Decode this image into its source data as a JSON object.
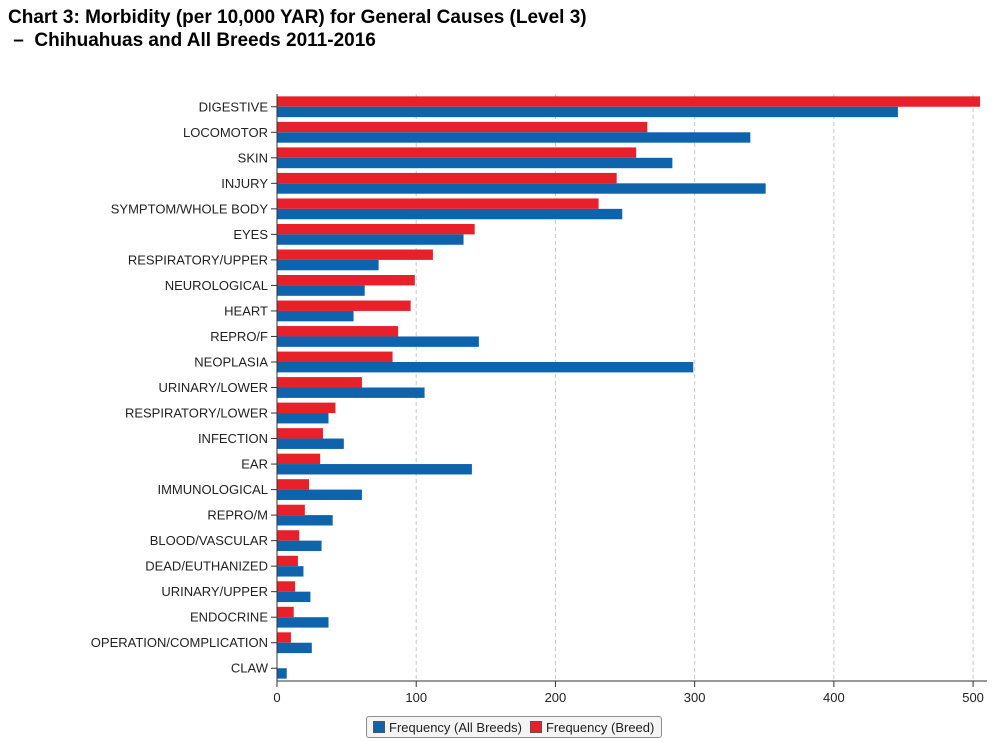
{
  "title": {
    "line1": "Chart 3: Morbidity (per 10,000 YAR) for General Causes (Level 3)",
    "line2": " –  Chihuahuas and All Breeds 2011-2016"
  },
  "colors": {
    "all_breeds": "#0e63ad",
    "breed": "#e8202a",
    "grid": "#c8c8c8"
  },
  "chart_data": {
    "type": "bar",
    "orientation": "horizontal",
    "title": "Chart 3: Morbidity (per 10,000 YAR) for General Causes (Level 3) – Chihuahuas and All Breeds 2011-2016",
    "xlabel": "",
    "ylabel": "",
    "xlim": [
      0,
      510
    ],
    "xticks": [
      0,
      100,
      200,
      300,
      400,
      500
    ],
    "grid": "vertical dashed",
    "legend_position": "bottom",
    "categories": [
      "DIGESTIVE",
      "LOCOMOTOR",
      "SKIN",
      "INJURY",
      "SYMPTOM/WHOLE BODY",
      "EYES",
      "RESPIRATORY/UPPER",
      "NEUROLOGICAL",
      "HEART",
      "REPRO/F",
      "NEOPLASIA",
      "URINARY/LOWER",
      "RESPIRATORY/LOWER",
      "INFECTION",
      "EAR",
      "IMMUNOLOGICAL",
      "REPRO/M",
      "BLOOD/VASCULAR",
      "DEAD/EUTHANIZED",
      "URINARY/UPPER",
      "ENDOCRINE",
      "OPERATION/COMPLICATION",
      "CLAW"
    ],
    "series": [
      {
        "name": "Frequency (Breed)",
        "color": "#e8202a",
        "values": [
          505,
          266,
          258,
          244,
          231,
          142,
          112,
          99,
          96,
          87,
          83,
          61,
          42,
          33,
          31,
          23,
          20,
          16,
          15,
          13,
          12,
          10,
          0
        ]
      },
      {
        "name": "Frequency (All Breeds)",
        "color": "#0e63ad",
        "values": [
          446,
          340,
          284,
          351,
          248,
          134,
          73,
          63,
          55,
          145,
          299,
          106,
          37,
          48,
          140,
          61,
          40,
          32,
          19,
          24,
          37,
          25,
          7
        ]
      }
    ]
  },
  "legend": [
    {
      "label": "Frequency (All Breeds)",
      "color": "#0e63ad"
    },
    {
      "label": "Frequency (Breed)",
      "color": "#e8202a"
    }
  ]
}
